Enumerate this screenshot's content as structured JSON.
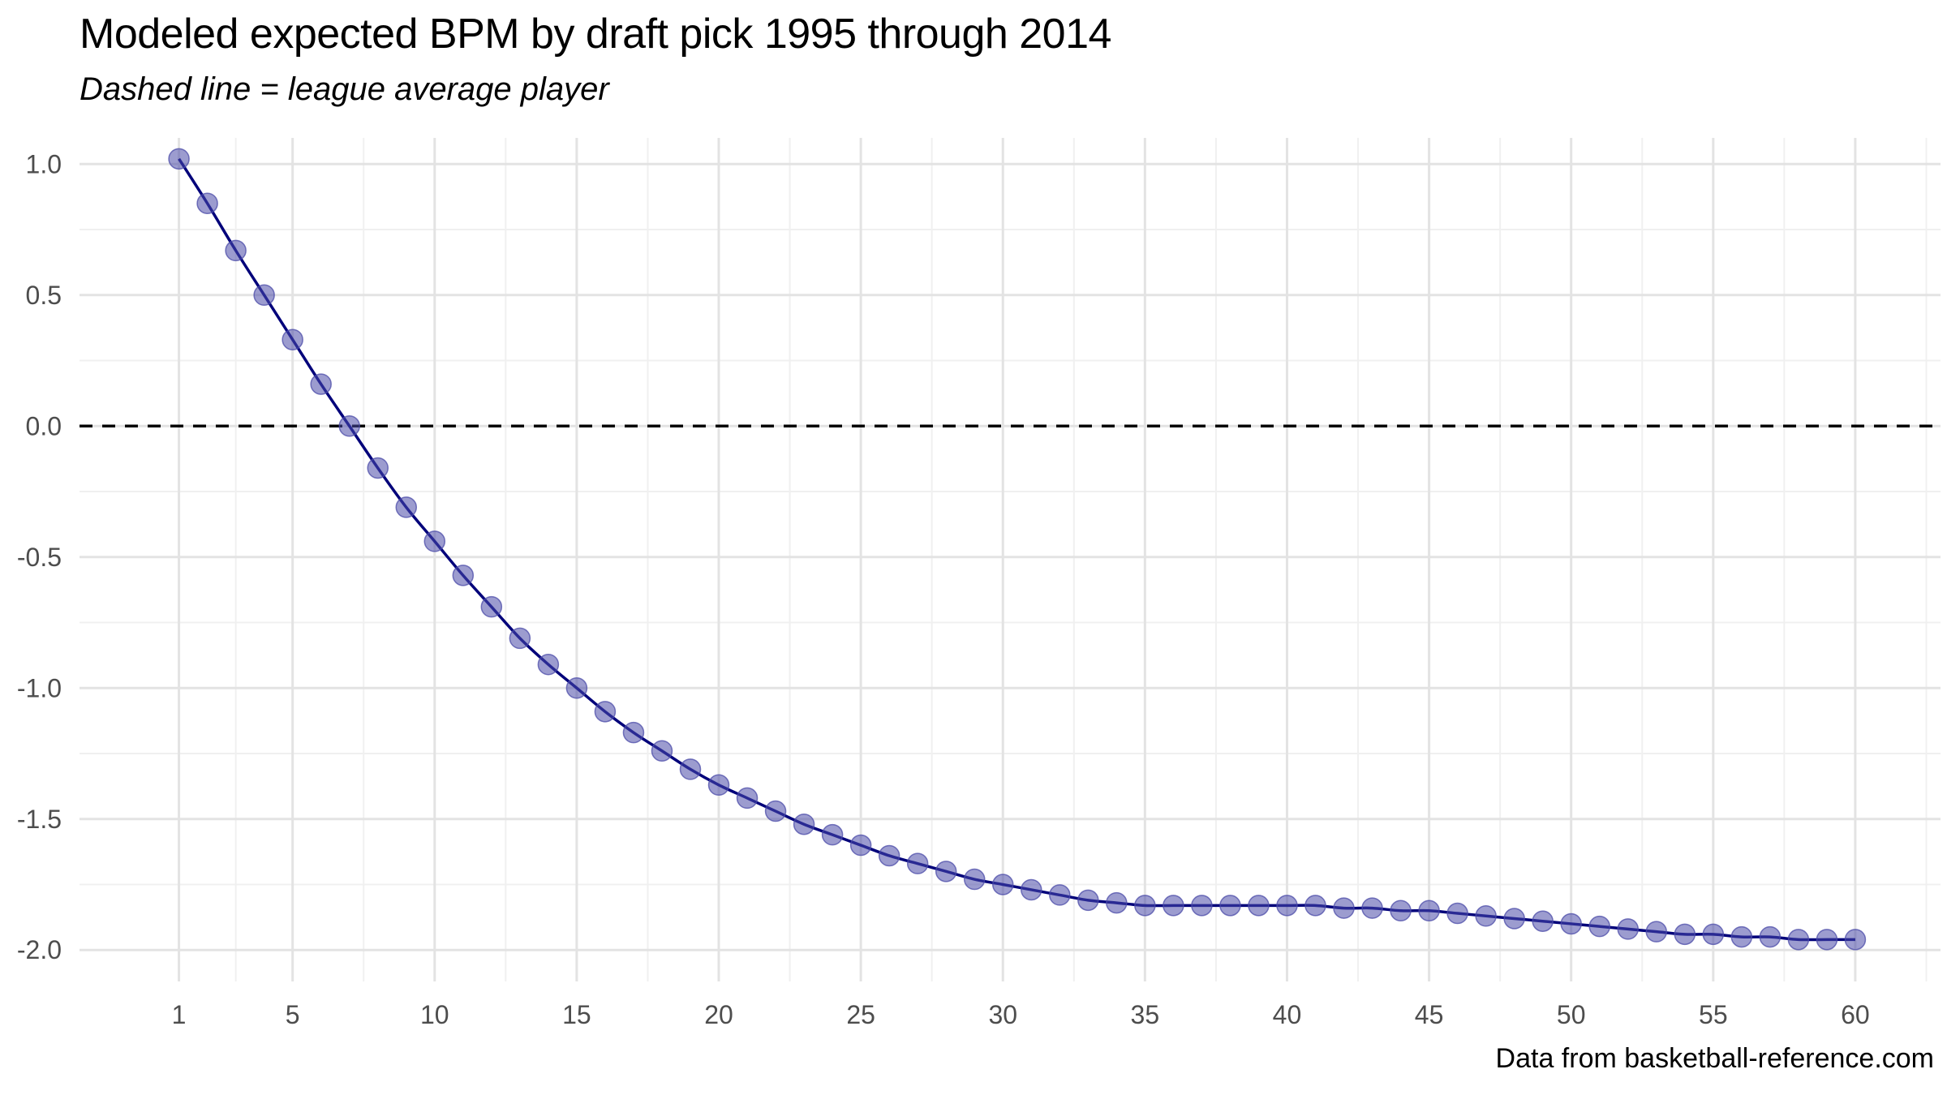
{
  "chart_data": {
    "type": "scatter",
    "title": "Modeled expected BPM by draft pick 1995 through 2014",
    "subtitle": "Dashed line = league average player",
    "caption": "Data from basketball-reference.com",
    "xlabel": "",
    "ylabel": "",
    "xlim": [
      -2.5,
      63
    ],
    "ylim": [
      -2.12,
      1.1
    ],
    "x_ticks": [
      1,
      5,
      10,
      15,
      20,
      25,
      30,
      35,
      40,
      45,
      50,
      55,
      60
    ],
    "x_tick_labels": [
      "1",
      "5",
      "10",
      "15",
      "20",
      "25",
      "30",
      "35",
      "40",
      "45",
      "50",
      "55",
      "60"
    ],
    "y_ticks": [
      1.0,
      0.5,
      0.0,
      -0.5,
      -1.0,
      -1.5,
      -2.0
    ],
    "y_tick_labels": [
      "1.0",
      "0.5",
      "0.0",
      "-0.5",
      "-1.0",
      "-1.5",
      "-2.0"
    ],
    "reference_line": {
      "y": 0,
      "style": "dashed",
      "color": "#000000"
    },
    "point_color": "#4b4ba8",
    "line_color": "#00007a",
    "series": [
      {
        "name": "Expected BPM",
        "x": [
          1,
          2,
          3,
          4,
          5,
          6,
          7,
          8,
          9,
          10,
          11,
          12,
          13,
          14,
          15,
          16,
          17,
          18,
          19,
          20,
          21,
          22,
          23,
          24,
          25,
          26,
          27,
          28,
          29,
          30,
          31,
          32,
          33,
          34,
          35,
          36,
          37,
          38,
          39,
          40,
          41,
          42,
          43,
          44,
          45,
          46,
          47,
          48,
          49,
          50,
          51,
          52,
          53,
          54,
          55,
          56,
          57,
          58,
          59,
          60
        ],
        "values": [
          1.02,
          0.85,
          0.67,
          0.5,
          0.33,
          0.16,
          0.0,
          -0.16,
          -0.31,
          -0.44,
          -0.57,
          -0.69,
          -0.81,
          -0.91,
          -1.0,
          -1.09,
          -1.17,
          -1.24,
          -1.31,
          -1.37,
          -1.42,
          -1.47,
          -1.52,
          -1.56,
          -1.6,
          -1.64,
          -1.67,
          -1.7,
          -1.73,
          -1.75,
          -1.77,
          -1.79,
          -1.81,
          -1.82,
          -1.83,
          -1.83,
          -1.83,
          -1.83,
          -1.83,
          -1.83,
          -1.83,
          -1.84,
          -1.84,
          -1.85,
          -1.85,
          -1.86,
          -1.87,
          -1.88,
          -1.89,
          -1.9,
          -1.91,
          -1.92,
          -1.93,
          -1.94,
          -1.94,
          -1.95,
          -1.95,
          -1.96,
          -1.96,
          -1.96
        ]
      }
    ]
  }
}
